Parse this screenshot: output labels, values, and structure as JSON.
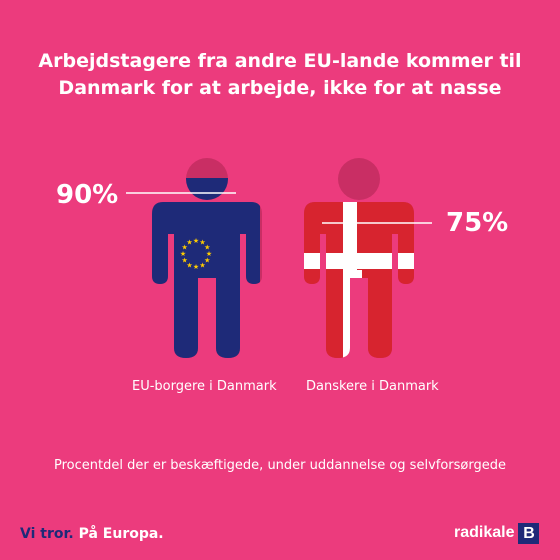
{
  "title": {
    "line1": "Arbejdstagere fra andre EU-lande kommer til",
    "line2": "Danmark for at arbejde, ikke for at nasse"
  },
  "left_figure": {
    "percent_label": "90%",
    "percent_value": 90,
    "caption": "EU-borgere i Danmark",
    "fill_color": "#1e2a78",
    "emblem": "eu-stars"
  },
  "right_figure": {
    "percent_label": "75%",
    "percent_value": 75,
    "caption": "Danskere i Danmark",
    "fill_color": "#d7242f",
    "emblem": "danish-flag"
  },
  "note": "Procentdel der er beskæftigede, under uddannelse og selvforsørgede",
  "footer": {
    "slogan_part1": "Vi tror.",
    "slogan_part2": "På Europa.",
    "brand_word": "radikale",
    "brand_letter": "B"
  },
  "colors": {
    "background": "#ec3b7d",
    "silhouette": "#c92e64",
    "eu_blue": "#1e2a78",
    "dk_red": "#d7242f",
    "star_yellow": "#ffcc00"
  }
}
